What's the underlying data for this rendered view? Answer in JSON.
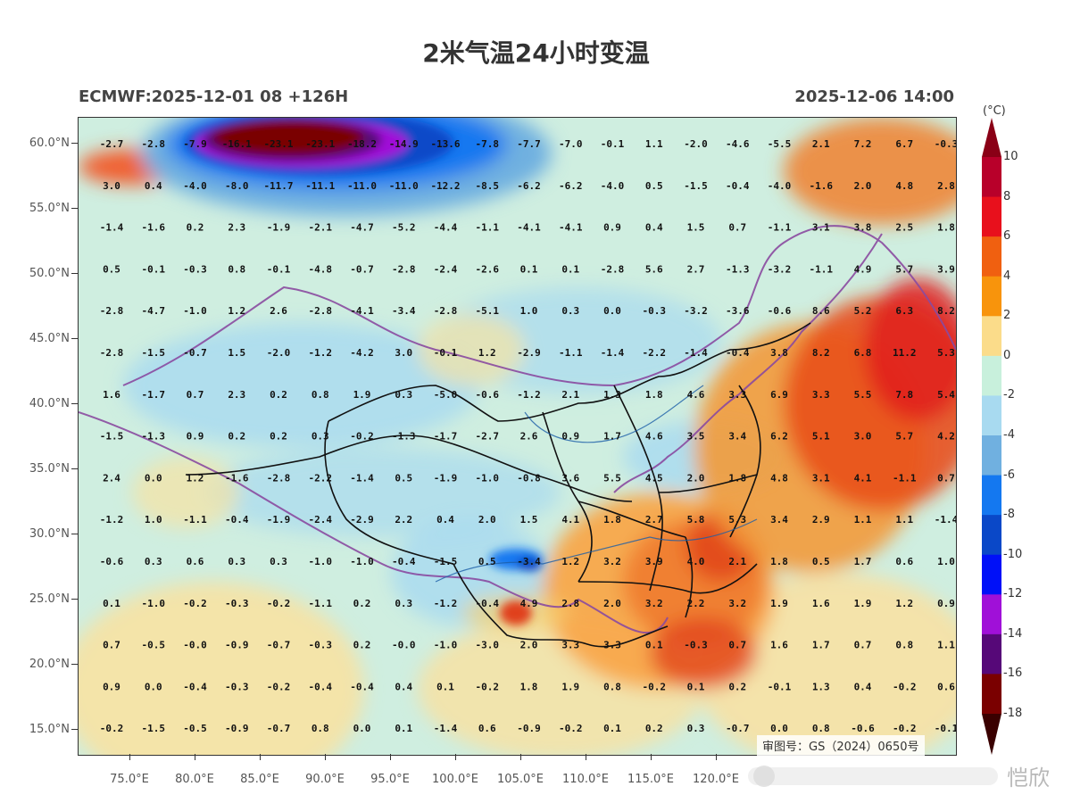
{
  "title": "2米气温24小时变温",
  "subtitle_left": "ECMWF:2025-12-01 08 +126H",
  "subtitle_right": "2025-12-06 14:00",
  "colorbar": {
    "unit": "(°C)",
    "labels": [
      "10",
      "8",
      "6",
      "4",
      "2",
      "0",
      "-2",
      "-4",
      "-6",
      "-8",
      "-10",
      "-12",
      "-14",
      "-16",
      "-18"
    ],
    "colors": [
      "#b8002a",
      "#e8101c",
      "#f06010",
      "#f8940c",
      "#fbdc8a",
      "#c8f0dc",
      "#a8daf0",
      "#70b0e0",
      "#1478f0",
      "#0a48c8",
      "#0010f8",
      "#a010d8",
      "#560878",
      "#7a0000"
    ]
  },
  "stamp_text": "审图号：GS（2024）0650号",
  "watermark": "恺欣",
  "lat_labels": [
    "60.0°N",
    "55.0°N",
    "50.0°N",
    "45.0°N",
    "40.0°N",
    "35.0°N",
    "30.0°N",
    "25.0°N",
    "20.0°N",
    "15.0°N"
  ],
  "lon_labels": [
    "75.0°E",
    "80.0°E",
    "85.0°E",
    "90.0°E",
    "95.0°E",
    "100.0°E",
    "105.0°E",
    "110.0°E",
    "115.0°E",
    "120.0°E"
  ],
  "grid_values": [
    [
      "-2.7",
      "-2.8",
      "-7.9",
      "-16.1",
      "-23.1",
      "-23.1",
      "-18.2",
      "-14.9",
      "-13.6",
      "-7.8",
      "-7.7",
      "-7.0",
      "-0.1",
      "1.1",
      "-2.0",
      "-4.6",
      "-5.5",
      "2.1",
      "7.2",
      "6.7",
      "-0.3"
    ],
    [
      "3.0",
      "0.4",
      "-4.0",
      "-8.0",
      "-11.7",
      "-11.1",
      "-11.0",
      "-11.0",
      "-12.2",
      "-8.5",
      "-6.2",
      "-6.2",
      "-4.0",
      "0.5",
      "-1.5",
      "-0.4",
      "-4.0",
      "-1.6",
      "2.0",
      "4.8",
      "2.8"
    ],
    [
      "-1.4",
      "-1.6",
      "0.2",
      "2.3",
      "-1.9",
      "-2.1",
      "-4.7",
      "-5.2",
      "-4.4",
      "-1.1",
      "-4.1",
      "-4.1",
      "0.9",
      "0.4",
      "1.5",
      "0.7",
      "-1.1",
      "3.1",
      "3.8",
      "2.5",
      "1.8"
    ],
    [
      "0.5",
      "-0.1",
      "-0.3",
      "0.8",
      "-0.1",
      "-4.8",
      "-0.7",
      "-2.8",
      "-2.4",
      "-2.6",
      "0.1",
      "0.1",
      "-2.8",
      "5.6",
      "2.7",
      "-1.3",
      "-3.2",
      "-1.1",
      "4.9",
      "5.7",
      "3.9"
    ],
    [
      "-2.8",
      "-4.7",
      "-1.0",
      "1.2",
      "2.6",
      "-2.8",
      "-4.1",
      "-3.4",
      "-2.8",
      "-5.1",
      "1.0",
      "0.3",
      "0.0",
      "-0.3",
      "-3.2",
      "-3.6",
      "-0.6",
      "8.6",
      "5.2",
      "6.3",
      "8.2"
    ],
    [
      "-2.8",
      "-1.5",
      "-0.7",
      "1.5",
      "-2.0",
      "-1.2",
      "-4.2",
      "3.0",
      "-0.1",
      "1.2",
      "-2.9",
      "-1.1",
      "-1.4",
      "-2.2",
      "-1.4",
      "-0.4",
      "3.8",
      "8.2",
      "6.8",
      "11.2",
      "5.3"
    ],
    [
      "1.6",
      "-1.7",
      "0.7",
      "2.3",
      "0.2",
      "0.8",
      "1.9",
      "0.3",
      "-5.0",
      "-0.6",
      "-1.2",
      "2.1",
      "1.3",
      "1.8",
      "4.6",
      "3.3",
      "6.9",
      "3.3",
      "5.5",
      "7.8",
      "5.4"
    ],
    [
      "-1.5",
      "-1.3",
      "0.9",
      "0.2",
      "0.2",
      "0.3",
      "-0.2",
      "-1.3",
      "-1.7",
      "-2.7",
      "2.6",
      "0.9",
      "1.7",
      "4.6",
      "3.5",
      "3.4",
      "6.2",
      "5.1",
      "3.0",
      "5.7",
      "4.2"
    ],
    [
      "2.4",
      "0.0",
      "1.2",
      "-1.6",
      "-2.8",
      "-2.2",
      "-1.4",
      "0.5",
      "-1.9",
      "-1.0",
      "-0.8",
      "3.6",
      "5.5",
      "4.5",
      "2.0",
      "1.8",
      "4.8",
      "3.1",
      "4.1",
      "-1.1",
      "0.7"
    ],
    [
      "-1.2",
      "1.0",
      "-1.1",
      "-0.4",
      "-1.9",
      "-2.4",
      "-2.9",
      "2.2",
      "0.4",
      "2.0",
      "1.5",
      "4.1",
      "1.8",
      "2.7",
      "5.8",
      "5.3",
      "3.4",
      "2.9",
      "1.1",
      "1.1",
      "-1.4"
    ],
    [
      "-0.6",
      "0.3",
      "0.6",
      "0.3",
      "0.3",
      "-1.0",
      "-1.0",
      "-0.4",
      "-1.5",
      "0.5",
      "-3.4",
      "1.2",
      "3.2",
      "3.9",
      "4.0",
      "2.1",
      "1.8",
      "0.5",
      "1.7",
      "0.6",
      "1.0"
    ],
    [
      "0.1",
      "-1.0",
      "-0.2",
      "-0.3",
      "-0.2",
      "-1.1",
      "0.2",
      "0.3",
      "-1.2",
      "-0.4",
      "4.9",
      "2.8",
      "2.0",
      "3.2",
      "2.2",
      "3.2",
      "1.9",
      "1.6",
      "1.9",
      "1.2",
      "0.9"
    ],
    [
      "0.7",
      "-0.5",
      "-0.0",
      "-0.9",
      "-0.7",
      "-0.3",
      "0.2",
      "-0.0",
      "-1.0",
      "-3.0",
      "2.0",
      "3.3",
      "3.3",
      "0.1",
      "-0.3",
      "0.7",
      "1.6",
      "1.7",
      "0.7",
      "0.8",
      "1.1"
    ],
    [
      "0.9",
      "0.0",
      "-0.4",
      "-0.3",
      "-0.2",
      "-0.4",
      "-0.4",
      "0.4",
      "0.1",
      "-0.2",
      "1.8",
      "1.9",
      "0.8",
      "-0.2",
      "0.1",
      "0.2",
      "-0.1",
      "1.3",
      "0.4",
      "-0.2",
      "0.6"
    ],
    [
      "-0.2",
      "-1.5",
      "-0.5",
      "-0.9",
      "-0.7",
      "0.8",
      "0.0",
      "0.1",
      "-1.4",
      "0.6",
      "-0.9",
      "-0.2",
      "0.1",
      "0.2",
      "0.3",
      "-0.7",
      "0.0",
      "0.8",
      "-0.6",
      "-0.2",
      "-0.1"
    ]
  ]
}
